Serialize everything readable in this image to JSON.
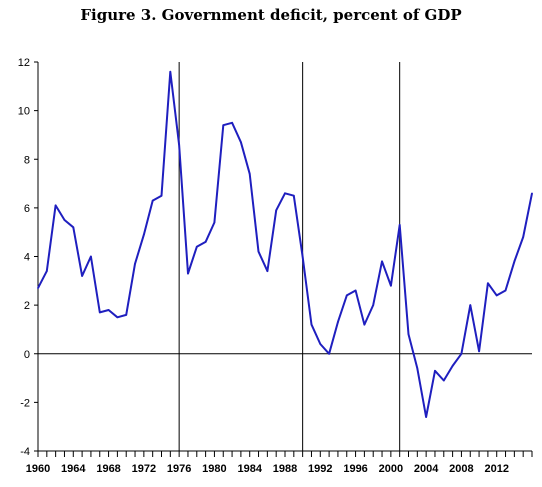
{
  "title": "Figure 3. Government deficit, percent of GDP",
  "chart_data": {
    "type": "line",
    "title": "Figure 3. Government deficit, percent of GDP",
    "xlabel": "",
    "ylabel": "",
    "ylim": [
      -4,
      12
    ],
    "xlim": [
      1960,
      2016
    ],
    "yticks": [
      -4,
      -2,
      0,
      2,
      4,
      6,
      8,
      10,
      12
    ],
    "xtick_labels": [
      "1960",
      "1964",
      "1968",
      "1972",
      "1976",
      "1980",
      "1984",
      "1988",
      "1992",
      "1996",
      "2000",
      "2004",
      "2008",
      "2012"
    ],
    "xtick_values": [
      1960,
      1964,
      1968,
      1972,
      1976,
      1980,
      1984,
      1988,
      1992,
      1996,
      2000,
      2004,
      2008,
      2012
    ],
    "vertical_lines": [
      1976,
      1990,
      2001
    ],
    "horizontal_line": 0,
    "series": [
      {
        "color": "#1f1fbf",
        "x": [
          1960,
          1961,
          1962,
          1963,
          1964,
          1965,
          1966,
          1967,
          1968,
          1969,
          1970,
          1971,
          1972,
          1973,
          1974,
          1975,
          1976,
          1977,
          1978,
          1979,
          1980,
          1981,
          1982,
          1983,
          1984,
          1985,
          1986,
          1987,
          1988,
          1989,
          1990,
          1991,
          1992,
          1993,
          1994,
          1995,
          1996,
          1997,
          1998,
          1999,
          2000,
          2001,
          2002,
          2003,
          2004,
          2005,
          2006,
          2007,
          2008,
          2009,
          2010,
          2011,
          2012,
          2013,
          2014,
          2015,
          2016
        ],
        "values": [
          2.7,
          3.4,
          6.1,
          5.5,
          5.2,
          3.2,
          4.0,
          1.7,
          1.8,
          1.5,
          1.6,
          3.7,
          4.9,
          6.3,
          6.5,
          11.6,
          8.6,
          3.3,
          4.4,
          4.6,
          5.4,
          9.4,
          9.5,
          8.7,
          7.4,
          4.2,
          3.4,
          5.9,
          6.6,
          6.5,
          4.0,
          1.2,
          0.4,
          0.0,
          1.3,
          2.4,
          2.6,
          1.2,
          2.0,
          3.8,
          2.8,
          5.3,
          0.8,
          -0.6,
          -2.6,
          -0.7,
          -1.1,
          -0.5,
          0.0,
          2.0,
          0.1,
          2.9,
          2.4,
          2.6,
          3.8,
          4.8,
          6.6
        ]
      }
    ],
    "grid": false,
    "legend": "none"
  }
}
